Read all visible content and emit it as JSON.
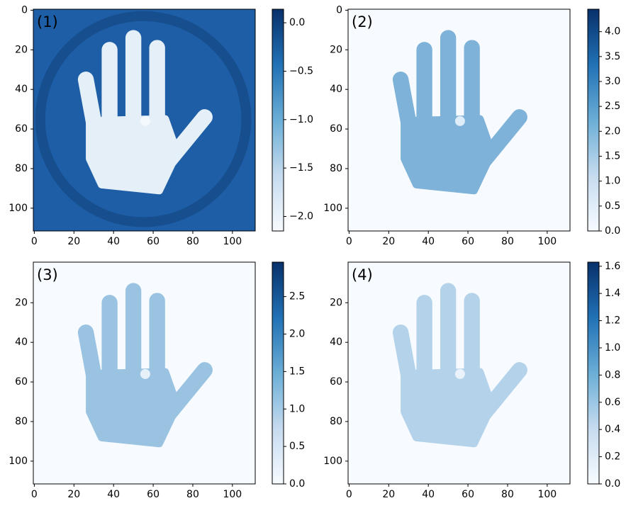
{
  "chart_data": [
    {
      "type": "heatmap",
      "label": "(1)",
      "label_color": "#ffffff",
      "background": "#1d5ea6",
      "hand_color": "#e4eff8",
      "ring_color": "#12457f",
      "xlim": [
        -0.5,
        111.5
      ],
      "ylim": [
        111.5,
        -0.5
      ],
      "xticks": [
        0,
        20,
        40,
        60,
        80,
        100
      ],
      "yticks": [
        0,
        20,
        40,
        60,
        80,
        100
      ],
      "colorbar": {
        "lim": [
          -2.15,
          0.14
        ],
        "ticks": [
          {
            "value": -2.0,
            "label": "−2.0"
          },
          {
            "value": -1.5,
            "label": "−1.5"
          },
          {
            "value": -1.0,
            "label": "−1.0"
          },
          {
            "value": -0.5,
            "label": "−0.5"
          },
          {
            "value": 0,
            "label": "0.0"
          }
        ]
      }
    },
    {
      "type": "heatmap",
      "label": "(2)",
      "label_color": "#000000",
      "background": "#f7fbff",
      "hand_color": "#7fb2d9",
      "xlim": [
        -0.5,
        111.5
      ],
      "ylim": [
        111.5,
        -0.5
      ],
      "xticks": [
        0,
        20,
        40,
        60,
        80,
        100
      ],
      "yticks": [
        0,
        20,
        40,
        60,
        80,
        100
      ],
      "colorbar": {
        "lim": [
          0,
          4.45
        ],
        "ticks": [
          {
            "value": 0,
            "label": "0.0"
          },
          0.5,
          {
            "value": 1,
            "label": "1.0"
          },
          1.5,
          {
            "value": 2,
            "label": "2.0"
          },
          2.5,
          {
            "value": 3,
            "label": "3.0"
          },
          3.5,
          {
            "value": 4,
            "label": "4.0"
          }
        ]
      }
    },
    {
      "type": "heatmap",
      "label": "(3)",
      "label_color": "#000000",
      "background": "#f7fbff",
      "hand_color": "#9ac3e2",
      "xlim": [
        -0.5,
        111.5
      ],
      "ylim": [
        111.5,
        -0.5
      ],
      "xticks": [
        0,
        20,
        40,
        60,
        80,
        100
      ],
      "yticks": [
        20,
        40,
        60,
        80,
        100
      ],
      "colorbar": {
        "lim": [
          0,
          2.96
        ],
        "ticks": [
          {
            "value": 0,
            "label": "0.0"
          },
          0.5,
          {
            "value": 1,
            "label": "1.0"
          },
          1.5,
          {
            "value": 2,
            "label": "2.0"
          },
          2.5
        ]
      }
    },
    {
      "type": "heatmap",
      "label": "(4)",
      "label_color": "#000000",
      "background": "#f7fbff",
      "hand_color": "#b4d3ea",
      "xlim": [
        -0.5,
        111.5
      ],
      "ylim": [
        111.5,
        -0.5
      ],
      "xticks": [
        0,
        20,
        40,
        60,
        80,
        100
      ],
      "yticks": [
        20,
        40,
        60,
        80,
        100
      ],
      "colorbar": {
        "lim": [
          0,
          1.63
        ],
        "ticks": [
          {
            "value": 0,
            "label": "0.0"
          },
          0.2,
          0.4,
          0.6,
          0.8,
          {
            "value": 1,
            "label": "1.0"
          },
          1.2,
          1.4,
          1.6
        ]
      }
    }
  ]
}
